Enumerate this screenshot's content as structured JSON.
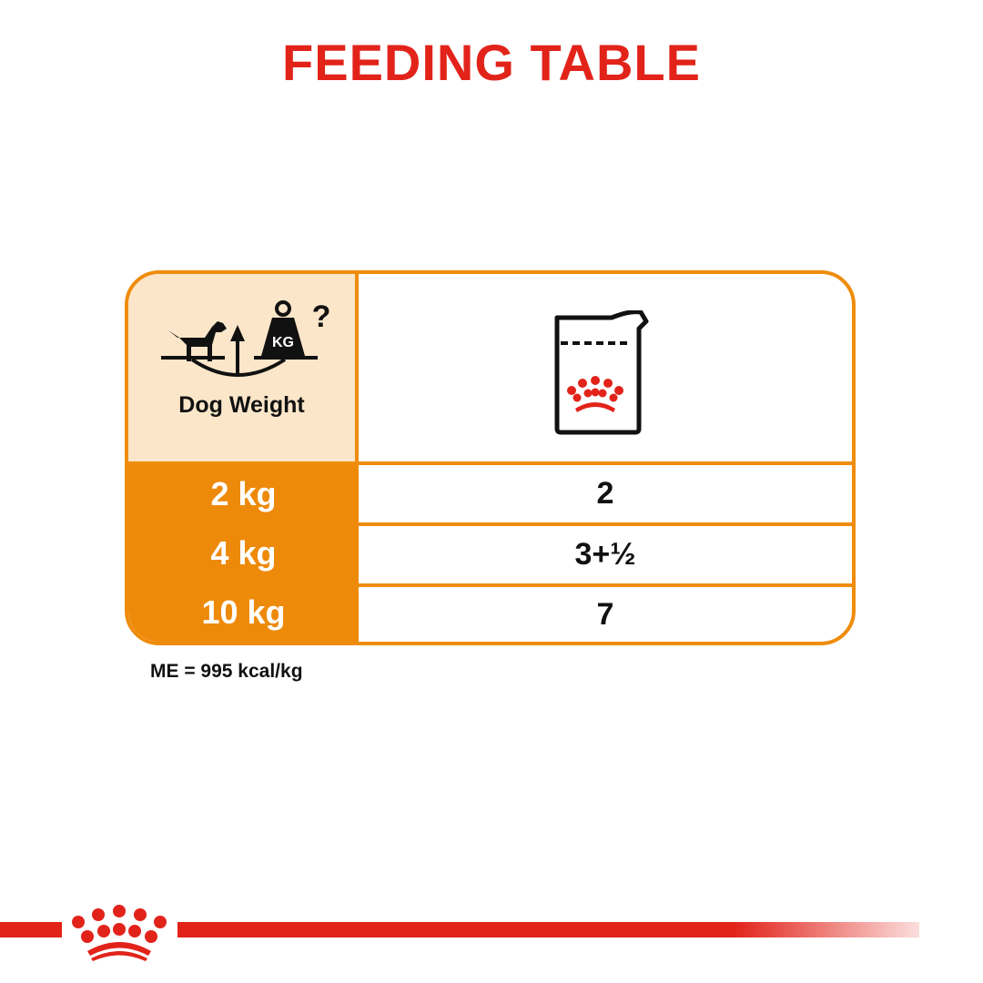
{
  "title": "FEEDING TABLE",
  "header": {
    "dog_weight_label": "Dog Weight",
    "weight_icon_text": "KG",
    "question_mark": "?"
  },
  "rows": [
    {
      "weight": "2 kg",
      "pouches": "2"
    },
    {
      "weight": "4 kg",
      "pouches": "3+½"
    },
    {
      "weight": "10 kg",
      "pouches": "7"
    }
  ],
  "footnote": "ME = 995 kcal/kg",
  "colors": {
    "brand_red": "#E2231A",
    "orange": "#EE8A0A",
    "light_orange": "#FCE6C9"
  }
}
